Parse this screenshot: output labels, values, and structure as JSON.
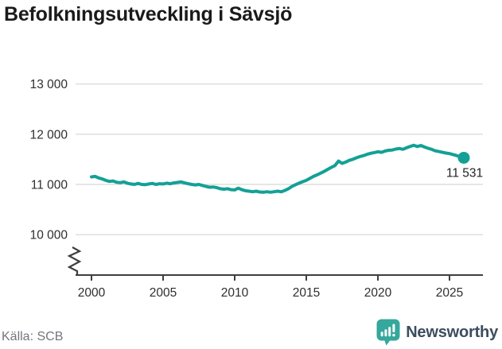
{
  "title": "Befolkningsutveckling i Sävsjö",
  "source": "Källa: SCB",
  "logo": {
    "text": "Newsworthy",
    "icon": "newsworthy-speech-bubble-bar-chart-icon",
    "icon_color": "#35a79c",
    "text_color": "#3c4d5e"
  },
  "chart_data": {
    "type": "line",
    "title": "Befolkningsutveckling i Sävsjö",
    "xlabel": "",
    "ylabel": "",
    "x_ticks": [
      2000,
      2005,
      2010,
      2015,
      2020,
      2025
    ],
    "y_ticks": [
      {
        "value": 13000,
        "label": "13 000"
      },
      {
        "value": 12000,
        "label": "12 000"
      },
      {
        "value": 11000,
        "label": "11 000"
      },
      {
        "value": 10000,
        "label": "10 000"
      }
    ],
    "xlim": [
      2000,
      2026.3
    ],
    "ylim_display": [
      10000,
      13000
    ],
    "axis_break": true,
    "grid": "horizontal",
    "line_color": "#14a096",
    "grid_color": "#dddddd",
    "axis_color": "#3f3f3f",
    "label_color": "#2e2e2e",
    "end_point": {
      "x": 2026.0,
      "y": 11531,
      "label": "11 531"
    },
    "series": [
      {
        "name": "Befolkning",
        "points": [
          [
            2000,
            11150
          ],
          [
            2000.25,
            11160
          ],
          [
            2000.5,
            11130
          ],
          [
            2000.75,
            11110
          ],
          [
            2001,
            11080
          ],
          [
            2001.25,
            11060
          ],
          [
            2001.5,
            11070
          ],
          [
            2001.75,
            11045
          ],
          [
            2002,
            11035
          ],
          [
            2002.25,
            11050
          ],
          [
            2002.5,
            11025
          ],
          [
            2002.75,
            11010
          ],
          [
            2003,
            11000
          ],
          [
            2003.25,
            11020
          ],
          [
            2003.5,
            11000
          ],
          [
            2003.75,
            10995
          ],
          [
            2004,
            11010
          ],
          [
            2004.25,
            11020
          ],
          [
            2004.5,
            11000
          ],
          [
            2004.75,
            11015
          ],
          [
            2005,
            11010
          ],
          [
            2005.25,
            11025
          ],
          [
            2005.5,
            11015
          ],
          [
            2005.75,
            11030
          ],
          [
            2006,
            11040
          ],
          [
            2006.25,
            11050
          ],
          [
            2006.5,
            11030
          ],
          [
            2006.75,
            11015
          ],
          [
            2007,
            11000
          ],
          [
            2007.25,
            10990
          ],
          [
            2007.5,
            11000
          ],
          [
            2007.75,
            10980
          ],
          [
            2008,
            10960
          ],
          [
            2008.25,
            10945
          ],
          [
            2008.5,
            10950
          ],
          [
            2008.75,
            10935
          ],
          [
            2009,
            10915
          ],
          [
            2009.25,
            10905
          ],
          [
            2009.5,
            10915
          ],
          [
            2009.75,
            10895
          ],
          [
            2010,
            10890
          ],
          [
            2010.25,
            10925
          ],
          [
            2010.5,
            10895
          ],
          [
            2010.75,
            10875
          ],
          [
            2011,
            10865
          ],
          [
            2011.25,
            10855
          ],
          [
            2011.5,
            10865
          ],
          [
            2011.75,
            10850
          ],
          [
            2012,
            10845
          ],
          [
            2012.25,
            10855
          ],
          [
            2012.5,
            10845
          ],
          [
            2012.75,
            10855
          ],
          [
            2013,
            10865
          ],
          [
            2013.25,
            10855
          ],
          [
            2013.5,
            10880
          ],
          [
            2013.75,
            10915
          ],
          [
            2014,
            10960
          ],
          [
            2014.25,
            10995
          ],
          [
            2014.5,
            11025
          ],
          [
            2014.75,
            11055
          ],
          [
            2015,
            11080
          ],
          [
            2015.25,
            11120
          ],
          [
            2015.5,
            11160
          ],
          [
            2015.75,
            11190
          ],
          [
            2016,
            11225
          ],
          [
            2016.25,
            11260
          ],
          [
            2016.5,
            11300
          ],
          [
            2016.75,
            11340
          ],
          [
            2017,
            11375
          ],
          [
            2017.25,
            11465
          ],
          [
            2017.5,
            11420
          ],
          [
            2017.75,
            11445
          ],
          [
            2018,
            11480
          ],
          [
            2018.25,
            11500
          ],
          [
            2018.5,
            11530
          ],
          [
            2018.75,
            11555
          ],
          [
            2019,
            11575
          ],
          [
            2019.25,
            11600
          ],
          [
            2019.5,
            11620
          ],
          [
            2019.75,
            11635
          ],
          [
            2020,
            11650
          ],
          [
            2020.25,
            11640
          ],
          [
            2020.5,
            11665
          ],
          [
            2020.75,
            11680
          ],
          [
            2021,
            11685
          ],
          [
            2021.25,
            11705
          ],
          [
            2021.5,
            11715
          ],
          [
            2021.75,
            11700
          ],
          [
            2022,
            11730
          ],
          [
            2022.25,
            11755
          ],
          [
            2022.5,
            11780
          ],
          [
            2022.75,
            11755
          ],
          [
            2023,
            11775
          ],
          [
            2023.25,
            11745
          ],
          [
            2023.5,
            11720
          ],
          [
            2023.75,
            11700
          ],
          [
            2024,
            11670
          ],
          [
            2024.25,
            11655
          ],
          [
            2024.5,
            11640
          ],
          [
            2024.75,
            11625
          ],
          [
            2025,
            11615
          ],
          [
            2025.25,
            11595
          ],
          [
            2025.5,
            11575
          ],
          [
            2025.75,
            11550
          ],
          [
            2026,
            11531
          ]
        ]
      }
    ]
  }
}
